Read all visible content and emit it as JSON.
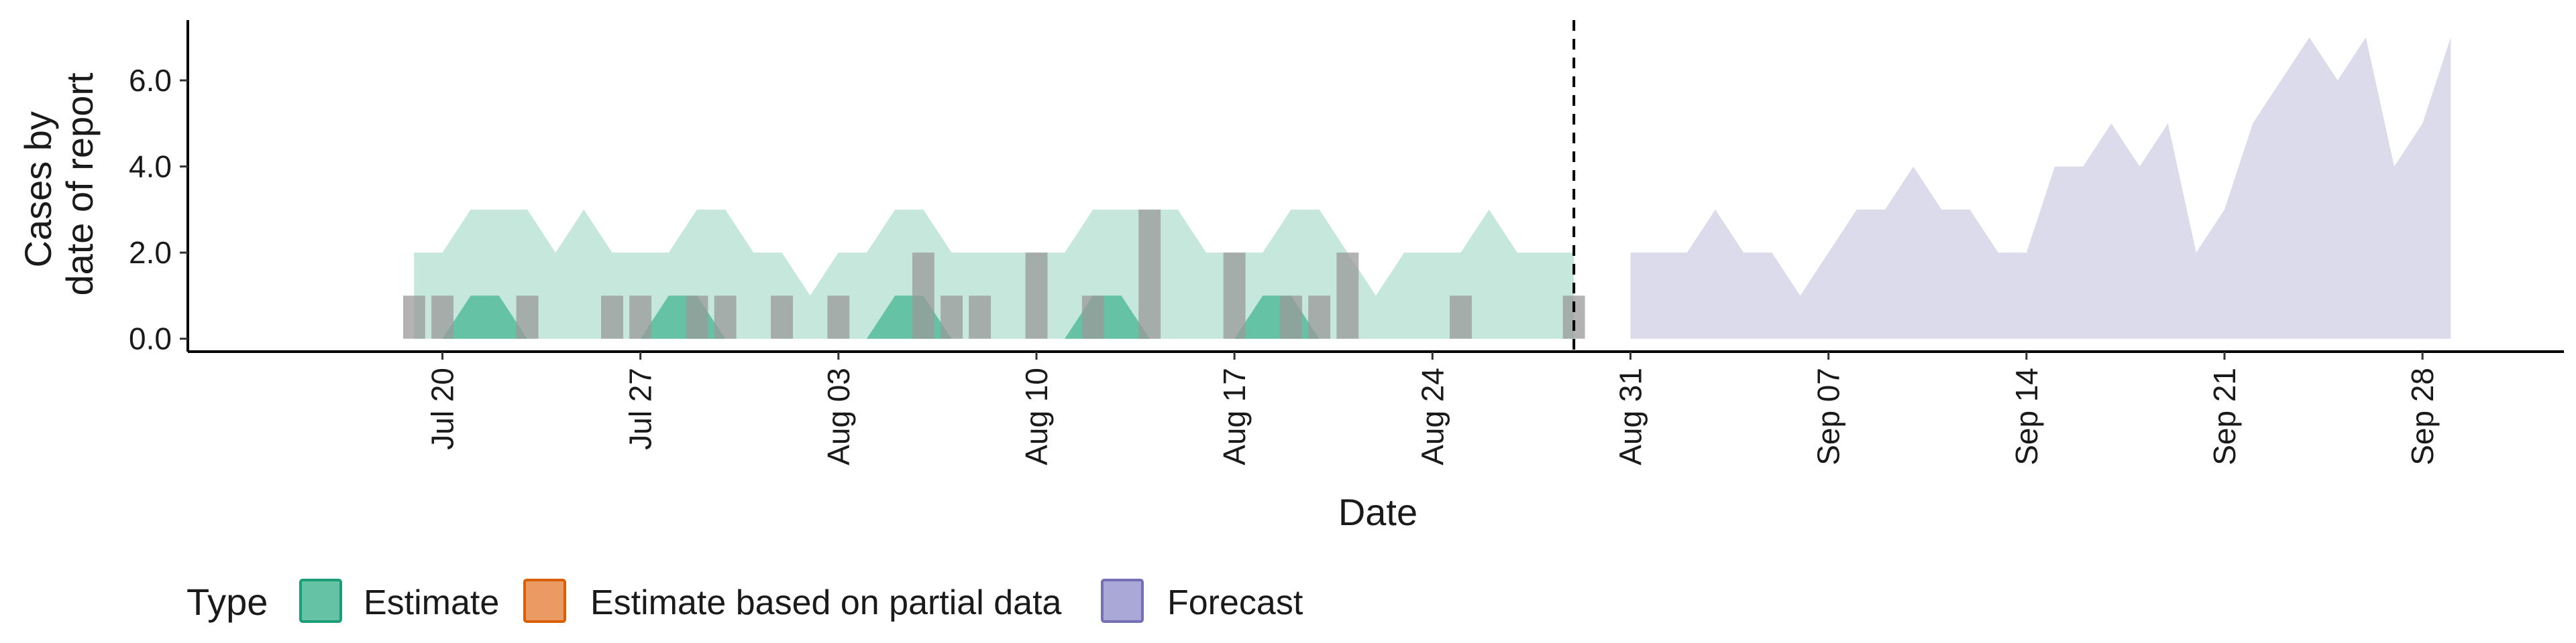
{
  "chart_data": {
    "type": "area",
    "title": "",
    "xlabel": "Date",
    "ylabel_lines": [
      "Cases by",
      "date of report"
    ],
    "x_domain": [
      "2020-07-11",
      "2020-10-03"
    ],
    "y_domain": [
      -0.3,
      7.4
    ],
    "yticks": [
      0,
      2,
      4,
      6
    ],
    "ytick_labels": [
      "0.0",
      "2.0",
      "4.0",
      "6.0"
    ],
    "xticks": [
      "2020-07-20",
      "2020-07-27",
      "2020-08-03",
      "2020-08-10",
      "2020-08-17",
      "2020-08-24",
      "2020-08-31",
      "2020-09-07",
      "2020-09-14",
      "2020-09-21",
      "2020-09-28"
    ],
    "xtick_labels": [
      "Jul 20",
      "Jul 27",
      "Aug 03",
      "Aug 10",
      "Aug 17",
      "Aug 24",
      "Aug 31",
      "Sep 07",
      "Sep 14",
      "Sep 21",
      "Sep 28"
    ],
    "vline_date": "2020-08-29",
    "estimate_outer": {
      "x": [
        "2020-07-19",
        "2020-07-20",
        "2020-07-21",
        "2020-07-22",
        "2020-07-23",
        "2020-07-24",
        "2020-07-25",
        "2020-07-26",
        "2020-07-27",
        "2020-07-28",
        "2020-07-29",
        "2020-07-30",
        "2020-07-31",
        "2020-08-01",
        "2020-08-02",
        "2020-08-03",
        "2020-08-04",
        "2020-08-05",
        "2020-08-06",
        "2020-08-07",
        "2020-08-08",
        "2020-08-09",
        "2020-08-10",
        "2020-08-11",
        "2020-08-12",
        "2020-08-13",
        "2020-08-14",
        "2020-08-15",
        "2020-08-16",
        "2020-08-17",
        "2020-08-18",
        "2020-08-19",
        "2020-08-20",
        "2020-08-21",
        "2020-08-22",
        "2020-08-23",
        "2020-08-24",
        "2020-08-25",
        "2020-08-26",
        "2020-08-27",
        "2020-08-28",
        "2020-08-29"
      ],
      "upper": [
        2,
        2,
        3,
        3,
        3,
        2,
        3,
        2,
        2,
        2,
        3,
        3,
        2,
        2,
        1,
        2,
        2,
        3,
        3,
        2,
        2,
        2,
        2,
        2,
        3,
        3,
        3,
        3,
        2,
        2,
        2,
        3,
        3,
        2,
        1,
        2,
        2,
        2,
        3,
        2,
        2,
        2
      ],
      "lower": [
        0,
        0,
        0,
        0,
        0,
        0,
        0,
        0,
        0,
        0,
        0,
        0,
        0,
        0,
        0,
        0,
        0,
        0,
        0,
        0,
        0,
        0,
        0,
        0,
        0,
        0,
        0,
        0,
        0,
        0,
        0,
        0,
        0,
        0,
        0,
        0,
        0,
        0,
        0,
        0,
        0,
        0
      ]
    },
    "estimate_inner_peaks": [
      {
        "start": "2020-07-20",
        "peak_from": "2020-07-21",
        "peak_to": "2020-07-22",
        "end": "2020-07-23",
        "value": 1
      },
      {
        "start": "2020-07-27",
        "peak_from": "2020-07-28",
        "peak_to": "2020-07-29",
        "end": "2020-07-30",
        "value": 1
      },
      {
        "start": "2020-08-04",
        "peak_from": "2020-08-05",
        "peak_to": "2020-08-06",
        "end": "2020-08-07",
        "value": 1
      },
      {
        "start": "2020-08-11",
        "peak_from": "2020-08-12",
        "peak_to": "2020-08-13",
        "end": "2020-08-14",
        "value": 1
      },
      {
        "start": "2020-08-17",
        "peak_from": "2020-08-18",
        "peak_to": "2020-08-19",
        "end": "2020-08-20",
        "value": 1
      }
    ],
    "forecast": {
      "x": [
        "2020-08-31",
        "2020-09-01",
        "2020-09-02",
        "2020-09-03",
        "2020-09-04",
        "2020-09-05",
        "2020-09-06",
        "2020-09-07",
        "2020-09-08",
        "2020-09-09",
        "2020-09-10",
        "2020-09-11",
        "2020-09-12",
        "2020-09-13",
        "2020-09-14",
        "2020-09-15",
        "2020-09-16",
        "2020-09-17",
        "2020-09-18",
        "2020-09-19",
        "2020-09-20",
        "2020-09-21",
        "2020-09-22",
        "2020-09-23",
        "2020-09-24",
        "2020-09-25",
        "2020-09-26",
        "2020-09-27",
        "2020-09-28",
        "2020-09-29"
      ],
      "upper": [
        2,
        2,
        2,
        3,
        2,
        2,
        1,
        2,
        3,
        3,
        4,
        3,
        3,
        2,
        2,
        4,
        4,
        5,
        4,
        5,
        2,
        3,
        5,
        6,
        7,
        6,
        7,
        4,
        5,
        7
      ],
      "lower": [
        0,
        0,
        0,
        0,
        0,
        0,
        0,
        0,
        0,
        0,
        0,
        0,
        0,
        0,
        0,
        0,
        0,
        0,
        0,
        0,
        0,
        0,
        0,
        0,
        0,
        0,
        0,
        0,
        0,
        0
      ]
    },
    "reported_cases": {
      "dates": [
        "2020-07-19",
        "2020-07-20",
        "2020-07-23",
        "2020-07-26",
        "2020-07-27",
        "2020-07-29",
        "2020-07-30",
        "2020-08-01",
        "2020-08-03",
        "2020-08-06",
        "2020-08-07",
        "2020-08-08",
        "2020-08-10",
        "2020-08-12",
        "2020-08-14",
        "2020-08-17",
        "2020-08-19",
        "2020-08-20",
        "2020-08-21",
        "2020-08-25",
        "2020-08-29"
      ],
      "values": [
        1,
        1,
        1,
        1,
        1,
        1,
        1,
        1,
        1,
        2,
        1,
        1,
        2,
        1,
        3,
        2,
        1,
        1,
        2,
        1,
        1
      ]
    },
    "legend": {
      "title": "Type",
      "items": [
        {
          "label": "Estimate",
          "fill": "#66c2a5",
          "stroke": "#1b9e77"
        },
        {
          "label": "Estimate based on partial data",
          "fill": "#ec9a64",
          "stroke": "#d95f02"
        },
        {
          "label": "Forecast",
          "fill": "#a9a8d6",
          "stroke": "#7570b3"
        }
      ]
    },
    "colors": {
      "estimate_outer": "#c5e7dc",
      "estimate_inner": "#66c2a5",
      "forecast": "#dcdbec",
      "bars": "#9a9a9a",
      "axis": "#000000"
    }
  }
}
